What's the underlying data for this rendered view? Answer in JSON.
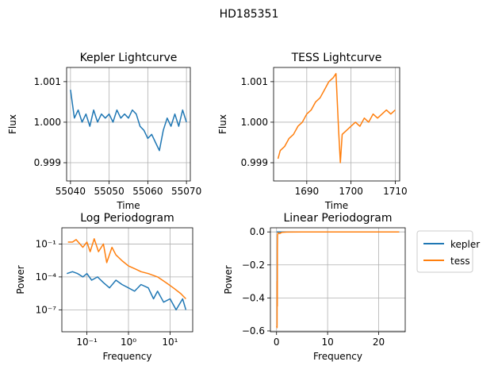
{
  "figure_title": "HD185351",
  "colors": {
    "kepler": "#1f77b4",
    "tess": "#ff7f0e",
    "grid": "#b0b0b0"
  },
  "legend": {
    "placement": "right of linear periodogram",
    "entries": [
      "kepler",
      "tess"
    ]
  },
  "chart_data": [
    {
      "type": "line",
      "title": "Kepler Lightcurve",
      "xlabel": "Time",
      "ylabel": "Flux",
      "xlim": [
        55039.0,
        55071.0
      ],
      "ylim": [
        0.99855,
        1.00135
      ],
      "xticks": [
        55040,
        55050,
        55060,
        55070
      ],
      "xtick_labels": [
        "55040",
        "55050",
        "55060",
        "55070"
      ],
      "yticks": [
        0.999,
        1.0,
        1.001
      ],
      "ytick_labels": [
        "0.999",
        "1.000",
        "1.001"
      ],
      "grid": true,
      "series": [
        {
          "name": "kepler",
          "x": [
            55040,
            55041,
            55042,
            55043,
            55044,
            55045,
            55046,
            55047,
            55048,
            55049,
            55050,
            55051,
            55052,
            55053,
            55054,
            55055,
            55056,
            55057,
            55058,
            55059,
            55060,
            55061,
            55062,
            55063,
            55064,
            55065,
            55066,
            55067,
            55068,
            55069,
            55070
          ],
          "y": [
            1.0008,
            1.0001,
            1.0003,
            1.0,
            1.0002,
            0.9999,
            1.0003,
            1.0,
            1.0002,
            1.0001,
            1.0002,
            1.0,
            1.0003,
            1.0001,
            1.0002,
            1.0001,
            1.0003,
            1.0002,
            0.9999,
            0.9998,
            0.9996,
            0.9997,
            0.9995,
            0.9993,
            0.9998,
            1.0001,
            0.9999,
            1.0002,
            0.9999,
            1.0003,
            1.0
          ]
        }
      ]
    },
    {
      "type": "line",
      "title": "TESS Lightcurve",
      "xlabel": "Time",
      "ylabel": "Flux",
      "xlim": [
        1682.5,
        1711.0
      ],
      "ylim": [
        0.99855,
        1.00135
      ],
      "xticks": [
        1690,
        1700,
        1710
      ],
      "xtick_labels": [
        "1690",
        "1700",
        "1710"
      ],
      "yticks": [
        0.999,
        1.0,
        1.001
      ],
      "ytick_labels": [
        "0.999",
        "1.000",
        "1.001"
      ],
      "grid": true,
      "series": [
        {
          "name": "tess",
          "x": [
            1683.5,
            1684,
            1685,
            1686,
            1687,
            1688,
            1689,
            1690,
            1691,
            1692,
            1693,
            1694,
            1695,
            1696,
            1696.6,
            1697.2,
            1697.6,
            1698,
            1699,
            1700,
            1701,
            1702,
            1703,
            1704,
            1705,
            1706,
            1707,
            1708,
            1709,
            1710
          ],
          "y": [
            0.9991,
            0.9993,
            0.9994,
            0.9996,
            0.9997,
            0.9999,
            1.0,
            1.0002,
            1.0003,
            1.0005,
            1.0006,
            1.0008,
            1.001,
            1.0011,
            1.0012,
            0.9998,
            0.999,
            0.9997,
            0.9998,
            0.9999,
            1.0,
            0.9999,
            1.0001,
            1.0,
            1.0002,
            1.0001,
            1.0002,
            1.0003,
            1.0002,
            1.0003
          ]
        }
      ]
    },
    {
      "type": "line",
      "title": "Log Periodogram",
      "xlabel": "Frequency",
      "ylabel": "Power",
      "xscale": "log",
      "yscale": "log",
      "xlim": [
        0.025,
        35
      ],
      "ylim": [
        1e-09,
        3
      ],
      "xticks": [
        0.1,
        1,
        10
      ],
      "xtick_labels": [
        "10⁻¹",
        "10⁰",
        "10¹"
      ],
      "yticks": [
        1e-07,
        0.0001,
        0.1
      ],
      "ytick_labels": [
        "10⁻⁷",
        "10⁻⁴",
        "10⁻¹"
      ],
      "grid": true,
      "series": [
        {
          "name": "kepler",
          "x": [
            0.033,
            0.045,
            0.06,
            0.08,
            0.1,
            0.13,
            0.18,
            0.25,
            0.35,
            0.5,
            0.7,
            1.0,
            1.4,
            2,
            3,
            4,
            5,
            7,
            10,
            14,
            20,
            24
          ],
          "y": [
            0.0002,
            0.0003,
            0.0002,
            0.0001,
            0.0002,
            5e-05,
            0.0001,
            3e-05,
            1e-05,
            5e-05,
            2e-05,
            1e-05,
            5e-06,
            2e-05,
            1e-05,
            1e-06,
            5e-06,
            5e-07,
            1e-06,
            1e-07,
            1e-06,
            1e-07
          ]
        },
        {
          "name": "tess",
          "x": [
            0.035,
            0.045,
            0.055,
            0.065,
            0.08,
            0.1,
            0.12,
            0.15,
            0.19,
            0.25,
            0.3,
            0.4,
            0.5,
            0.7,
            1.0,
            1.5,
            2,
            3,
            5,
            8,
            12,
            18,
            24
          ],
          "y": [
            0.15,
            0.15,
            0.25,
            0.12,
            0.05,
            0.15,
            0.02,
            0.3,
            0.02,
            0.1,
            0.002,
            0.05,
            0.01,
            0.003,
            0.001,
            0.0005,
            0.0003,
            0.0002,
            0.0001,
            3e-05,
            1e-05,
            3e-06,
            1e-06
          ]
        }
      ]
    },
    {
      "type": "line",
      "title": "Linear Periodogram",
      "xlabel": "Frequency",
      "ylabel": "Power",
      "xlim": [
        -1.2,
        25.2
      ],
      "ylim": [
        -0.605,
        0.025
      ],
      "xticks": [
        0,
        10,
        20
      ],
      "xtick_labels": [
        "0",
        "10",
        "20"
      ],
      "yticks": [
        0.0,
        -0.2,
        -0.4,
        -0.6
      ],
      "ytick_labels": [
        "0.0",
        "−0.2",
        "−0.4",
        "−0.6"
      ],
      "grid": true,
      "series": [
        {
          "name": "kepler",
          "x": [
            0.03,
            0.1,
            0.3,
            1,
            5,
            10,
            15,
            20,
            24
          ],
          "y": [
            0.0,
            0.0,
            0.0,
            0.0,
            0.0,
            0.0,
            0.0,
            0.0,
            0.0
          ]
        },
        {
          "name": "tess",
          "x": [
            0.03,
            0.1,
            0.12,
            0.15,
            0.17,
            0.2,
            0.3,
            0.6,
            1,
            2,
            5,
            10,
            15,
            20,
            24
          ],
          "y": [
            -0.57,
            -0.58,
            -0.3,
            -0.45,
            -0.1,
            -0.02,
            -0.005,
            -0.01,
            -0.003,
            -0.001,
            0.0,
            0.0,
            0.0,
            0.0,
            0.0
          ]
        }
      ]
    }
  ]
}
